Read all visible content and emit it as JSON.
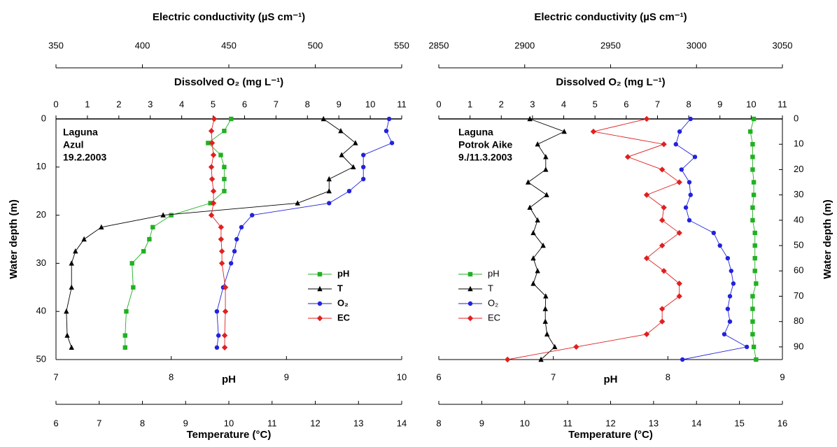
{
  "chart_data": [
    {
      "type": "profile",
      "label": [
        "Laguna",
        "Azul",
        "19.2.2003"
      ],
      "ylabel": "Water depth (m)",
      "yaxis": "left",
      "ylim": [
        0,
        50
      ],
      "yticks": [
        0,
        10,
        20,
        30,
        40,
        50
      ],
      "legend": "lower right",
      "ec_axis": {
        "label": "Electric conductivity (µS cm⁻¹)",
        "color": "#e02020",
        "lim": [
          350,
          550
        ],
        "ticks": [
          350,
          400,
          450,
          500,
          550
        ]
      },
      "o2_axis": {
        "label": "Dissolved O₂ (mg L⁻¹)",
        "color": "#2222dd",
        "lim": [
          0,
          11
        ],
        "ticks": [
          0,
          1,
          2,
          3,
          4,
          5,
          6,
          7,
          8,
          9,
          10,
          11
        ]
      },
      "ph_axis": {
        "label": "pH",
        "color": "#22b022",
        "lim": [
          7,
          10
        ],
        "ticks": [
          7,
          8,
          9,
          10
        ]
      },
      "t_axis": {
        "label": "Temperature (°C)",
        "color": "#000000",
        "lim": [
          6,
          14
        ],
        "ticks": [
          6,
          7,
          8,
          9,
          10,
          11,
          12,
          13,
          14
        ]
      },
      "depth": [
        0,
        2.5,
        5,
        7.5,
        10,
        12.5,
        15,
        17.5,
        20,
        22.5,
        25,
        27.5,
        30,
        35,
        40,
        45,
        47.5
      ],
      "series": [
        {
          "name": "pH",
          "color": "#22b022",
          "marker": "square",
          "axis": "ph_axis",
          "values": [
            8.52,
            8.46,
            8.32,
            8.43,
            8.46,
            8.46,
            8.46,
            8.34,
            8.0,
            7.84,
            7.81,
            7.76,
            7.66,
            7.67,
            7.61,
            7.6,
            7.6
          ]
        },
        {
          "name": "T",
          "color": "#000000",
          "marker": "triangle",
          "axis": "t_axis",
          "values": [
            12.19,
            12.59,
            12.93,
            12.61,
            12.88,
            12.32,
            12.32,
            11.59,
            8.48,
            7.05,
            6.65,
            6.45,
            6.36,
            6.36,
            6.24,
            6.26,
            6.36
          ]
        },
        {
          "name": "O₂",
          "color": "#2222dd",
          "marker": "circle",
          "axis": "o2_axis",
          "values": [
            10.6,
            10.51,
            10.69,
            9.78,
            9.78,
            9.78,
            9.33,
            8.69,
            6.24,
            5.9,
            5.75,
            5.68,
            5.57,
            5.32,
            5.12,
            5.17,
            5.12
          ]
        },
        {
          "name": "EC",
          "color": "#e02020",
          "marker": "diamond",
          "axis": "ec_axis",
          "values": [
            441.5,
            439.9,
            440.3,
            441.1,
            439.9,
            440.3,
            441.1,
            441.1,
            439.9,
            445.5,
            445.5,
            446,
            446,
            448,
            448,
            447.6,
            447.6
          ]
        }
      ]
    },
    {
      "type": "profile",
      "label": [
        "Laguna",
        "Potrok Aike",
        "9./11.3.2003"
      ],
      "ylabel": "Water depth (m)",
      "yaxis": "right",
      "ylim": [
        0,
        95
      ],
      "yticks": [
        0,
        10,
        20,
        30,
        40,
        50,
        60,
        70,
        80,
        90
      ],
      "legend": "lower left",
      "ec_axis": {
        "label": "Electric conductivity (µS cm⁻¹)",
        "color": "#e02020",
        "lim": [
          2850,
          3050
        ],
        "ticks": [
          2850,
          2900,
          2950,
          3000,
          3050
        ]
      },
      "o2_axis": {
        "label": "Dissolved O₂ (mg L⁻¹)",
        "color": "#2222dd",
        "lim": [
          0,
          11
        ],
        "ticks": [
          0,
          1,
          2,
          3,
          4,
          5,
          6,
          7,
          8,
          9,
          10,
          11
        ]
      },
      "ph_axis": {
        "label": "pH",
        "color": "#22b022",
        "lim": [
          6,
          9
        ],
        "ticks": [
          6,
          7,
          8,
          9
        ]
      },
      "t_axis": {
        "label": "Temperature (°C)",
        "color": "#000000",
        "lim": [
          8,
          16
        ],
        "ticks": [
          8,
          9,
          10,
          11,
          12,
          13,
          14,
          15,
          16
        ]
      },
      "depth": [
        0,
        5,
        10,
        15,
        20,
        25,
        30,
        35,
        40,
        45,
        50,
        55,
        60,
        65,
        70,
        75,
        80,
        85,
        90,
        95
      ],
      "series": [
        {
          "name": "pH",
          "color": "#22b022",
          "marker": "square",
          "axis": "ph_axis",
          "values": [
            8.75,
            8.72,
            8.74,
            8.74,
            8.74,
            8.75,
            8.75,
            8.74,
            8.74,
            8.76,
            8.76,
            8.76,
            8.76,
            8.77,
            8.74,
            8.74,
            8.74,
            8.74,
            8.75,
            8.77
          ]
        },
        {
          "name": "T",
          "color": "#000000",
          "marker": "triangle",
          "axis": "t_axis",
          "values": [
            10.12,
            10.92,
            10.3,
            10.49,
            10.49,
            10.08,
            10.51,
            10.12,
            10.3,
            10.2,
            10.43,
            10.2,
            10.3,
            10.2,
            10.49,
            10.48,
            10.48,
            10.52,
            10.7,
            10.38
          ]
        },
        {
          "name": "O₂",
          "color": "#2222dd",
          "marker": "circle",
          "axis": "o2_axis",
          "values": [
            8.06,
            7.71,
            7.59,
            8.2,
            7.77,
            8.02,
            8.06,
            7.91,
            8.02,
            8.8,
            9.0,
            9.25,
            9.36,
            9.43,
            9.32,
            9.25,
            9.32,
            9.14,
            9.86,
            7.8
          ]
        },
        {
          "name": "EC",
          "color": "#e02020",
          "marker": "diamond",
          "axis": "ec_axis",
          "values": [
            2971,
            2940,
            2981,
            2960,
            2980,
            2990,
            2971,
            2981,
            2980,
            2990,
            2980,
            2971,
            2981,
            2990,
            2990,
            2980,
            2980,
            2971,
            2930,
            2890
          ]
        }
      ]
    }
  ]
}
